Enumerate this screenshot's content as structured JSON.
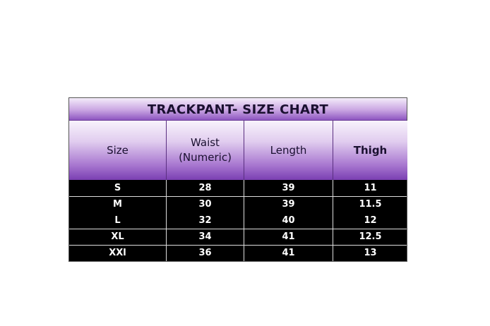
{
  "title": "TRACKPANT- SIZE CHART",
  "columns": [
    "Size",
    "Waist\n(Numeric)",
    "Length",
    "Thigh"
  ],
  "rows": [
    [
      "S",
      "28",
      "39",
      "11"
    ],
    [
      "M",
      "30",
      "39",
      "11.5"
    ],
    [
      "L",
      "32",
      "40",
      "12"
    ],
    [
      "XL",
      "34",
      "41",
      "12.5"
    ],
    [
      "XXl",
      "36",
      "41",
      "13"
    ]
  ],
  "colors": {
    "header_purple": "#7a3fb2",
    "row_bg": "#000000",
    "text_light": "#ffffff"
  }
}
